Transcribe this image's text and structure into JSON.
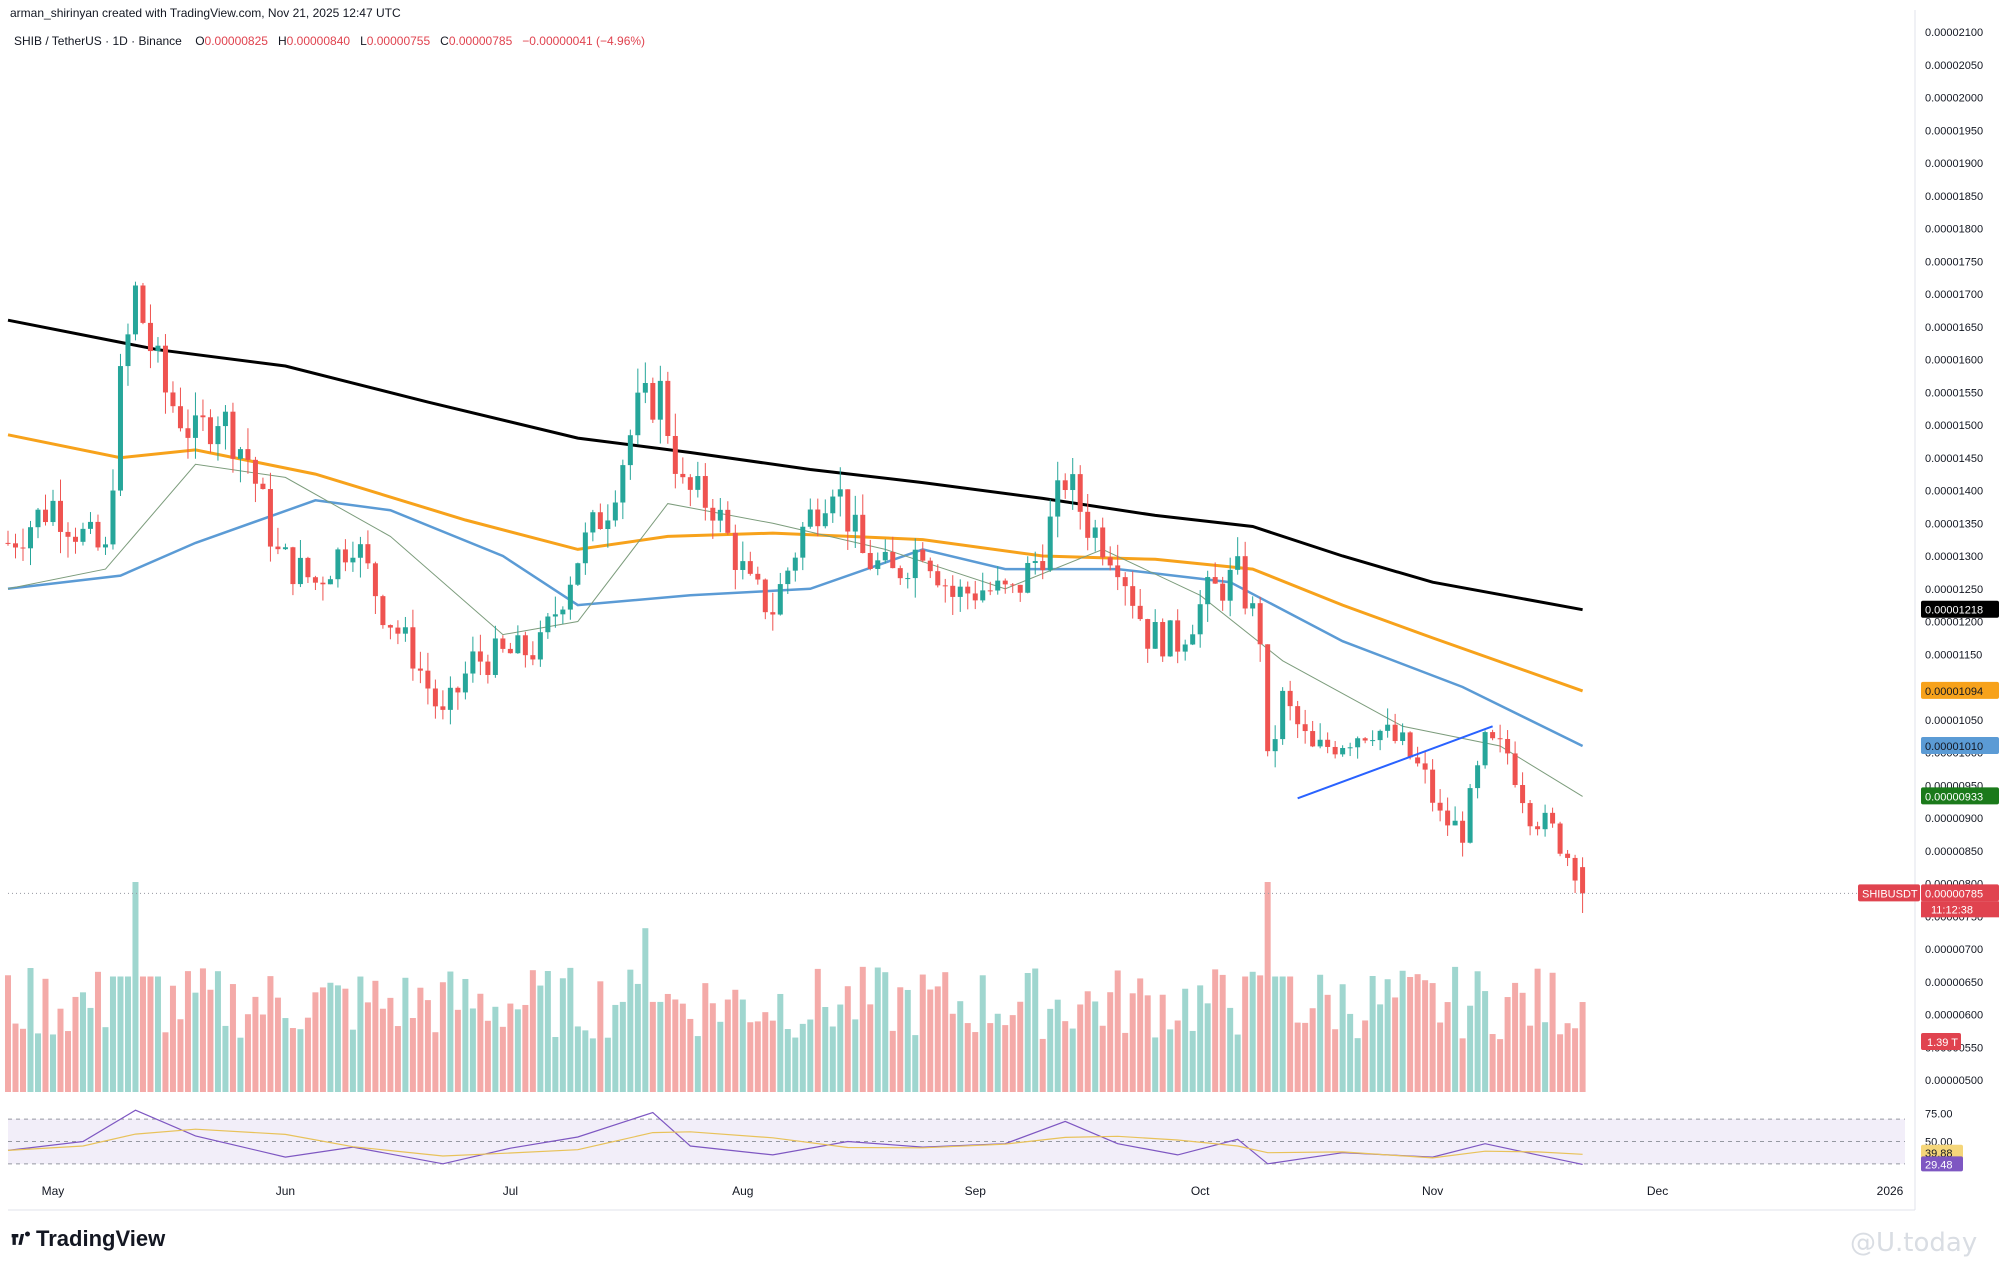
{
  "header": {
    "credit": "arman_shirinyan created with TradingView.com, Nov 21, 2025 12:47 UTC",
    "symbol": "SHIB / TetherUS · 1D · Binance",
    "open_label": "O",
    "open": "0.00000825",
    "high_label": "H",
    "high": "0.00000840",
    "low_label": "L",
    "low": "0.00000755",
    "close_label": "C",
    "close": "0.00000785",
    "change": "−0.00000041 (−4.96%)"
  },
  "footer": {
    "brand": "TradingView",
    "watermark": "@U.today"
  },
  "colors": {
    "up": "#26a69a",
    "down": "#ef5350",
    "ma200": "#000000",
    "ma100": "#f7a21b",
    "ma50": "#5b9bd5",
    "ma20": "#7c9c7c",
    "rsi": "#7e57c2",
    "rsi_ma": "#e8c25a",
    "trendline": "#2962ff",
    "last_price": "#e0434f"
  },
  "chart_data": [
    {
      "type": "candlestick",
      "title": "SHIB / TetherUS · 1D · Binance",
      "x_ticks": [
        "May",
        "Jun",
        "Jul",
        "Aug",
        "Sep",
        "Oct",
        "Nov",
        "Dec",
        "2026"
      ],
      "x_tick_dates": [
        "2025-05-01",
        "2025-06-01",
        "2025-07-01",
        "2025-08-01",
        "2025-09-01",
        "2025-10-01",
        "2025-11-01",
        "2025-12-01",
        "2026-01-01"
      ],
      "y_ticks": [
        "0.00002100",
        "0.00002050",
        "0.00002000",
        "0.00001950",
        "0.00001900",
        "0.00001850",
        "0.00001800",
        "0.00001750",
        "0.00001700",
        "0.00001650",
        "0.00001600",
        "0.00001550",
        "0.00001500",
        "0.00001450",
        "0.00001400",
        "0.00001350",
        "0.00001300",
        "0.00001250",
        "0.00001200",
        "0.00001150",
        "0.00001100",
        "0.00001050",
        "0.00001000",
        "0.00000950",
        "0.00000900",
        "0.00000850",
        "0.00000800",
        "0.00000750",
        "0.00000700",
        "0.00000650",
        "0.00000600",
        "0.00000550",
        "0.00000500"
      ],
      "ylim": [
        5e-06,
        2.1e-05
      ],
      "series": [
        {
          "name": "Close",
          "points": [
            {
              "date": "2025-04-25",
              "close": 1.32e-05
            },
            {
              "date": "2025-05-01",
              "close": 1.38e-05
            },
            {
              "date": "2025-05-05",
              "close": 1.33e-05
            },
            {
              "date": "2025-05-08",
              "close": 1.3e-05
            },
            {
              "date": "2025-05-10",
              "close": 1.56e-05
            },
            {
              "date": "2025-05-12",
              "close": 1.7e-05
            },
            {
              "date": "2025-05-14",
              "close": 1.62e-05
            },
            {
              "date": "2025-05-16",
              "close": 1.55e-05
            },
            {
              "date": "2025-05-20",
              "close": 1.48e-05
            },
            {
              "date": "2025-05-23",
              "close": 1.52e-05
            },
            {
              "date": "2025-05-27",
              "close": 1.45e-05
            },
            {
              "date": "2025-05-31",
              "close": 1.3e-05
            },
            {
              "date": "2025-06-05",
              "close": 1.26e-05
            },
            {
              "date": "2025-06-10",
              "close": 1.33e-05
            },
            {
              "date": "2025-06-14",
              "close": 1.22e-05
            },
            {
              "date": "2025-06-18",
              "close": 1.15e-05
            },
            {
              "date": "2025-06-22",
              "close": 1.05e-05
            },
            {
              "date": "2025-06-26",
              "close": 1.14e-05
            },
            {
              "date": "2025-07-01",
              "close": 1.15e-05
            },
            {
              "date": "2025-07-05",
              "close": 1.16e-05
            },
            {
              "date": "2025-07-10",
              "close": 1.3e-05
            },
            {
              "date": "2025-07-14",
              "close": 1.38e-05
            },
            {
              "date": "2025-07-18",
              "close": 1.52e-05
            },
            {
              "date": "2025-07-21",
              "close": 1.55e-05
            },
            {
              "date": "2025-07-24",
              "close": 1.4e-05
            },
            {
              "date": "2025-07-28",
              "close": 1.38e-05
            },
            {
              "date": "2025-08-02",
              "close": 1.25e-05
            },
            {
              "date": "2025-08-05",
              "close": 1.22e-05
            },
            {
              "date": "2025-08-09",
              "close": 1.34e-05
            },
            {
              "date": "2025-08-13",
              "close": 1.42e-05
            },
            {
              "date": "2025-08-17",
              "close": 1.3e-05
            },
            {
              "date": "2025-08-21",
              "close": 1.27e-05
            },
            {
              "date": "2025-08-25",
              "close": 1.32e-05
            },
            {
              "date": "2025-08-29",
              "close": 1.24e-05
            },
            {
              "date": "2025-09-02",
              "close": 1.25e-05
            },
            {
              "date": "2025-09-06",
              "close": 1.24e-05
            },
            {
              "date": "2025-09-10",
              "close": 1.31e-05
            },
            {
              "date": "2025-09-13",
              "close": 1.42e-05
            },
            {
              "date": "2025-09-16",
              "close": 1.35e-05
            },
            {
              "date": "2025-09-20",
              "close": 1.3e-05
            },
            {
              "date": "2025-09-24",
              "close": 1.18e-05
            },
            {
              "date": "2025-09-28",
              "close": 1.17e-05
            },
            {
              "date": "2025-10-02",
              "close": 1.24e-05
            },
            {
              "date": "2025-10-06",
              "close": 1.27e-05
            },
            {
              "date": "2025-10-09",
              "close": 1.18e-05
            },
            {
              "date": "2025-10-10",
              "close": 9.8e-06
            },
            {
              "date": "2025-10-12",
              "close": 1.08e-05
            },
            {
              "date": "2025-10-16",
              "close": 1e-05
            },
            {
              "date": "2025-10-20",
              "close": 1.02e-05
            },
            {
              "date": "2025-10-24",
              "close": 1.04e-05
            },
            {
              "date": "2025-10-28",
              "close": 1.01e-05
            },
            {
              "date": "2025-10-31",
              "close": 9.6e-06
            },
            {
              "date": "2025-11-02",
              "close": 9e-06
            },
            {
              "date": "2025-11-05",
              "close": 8.8e-06
            },
            {
              "date": "2025-11-08",
              "close": 1.01e-05
            },
            {
              "date": "2025-11-11",
              "close": 1e-05
            },
            {
              "date": "2025-11-14",
              "close": 9.1e-06
            },
            {
              "date": "2025-11-17",
              "close": 8.8e-06
            },
            {
              "date": "2025-11-20",
              "close": 8.25e-06
            },
            {
              "date": "2025-11-21",
              "close": 7.85e-06
            }
          ]
        },
        {
          "name": "MA 200",
          "points": [
            {
              "date": "2025-04-25",
              "value": 1.66e-05
            },
            {
              "date": "2025-05-15",
              "value": 1.615e-05
            },
            {
              "date": "2025-06-01",
              "value": 1.59e-05
            },
            {
              "date": "2025-06-20",
              "value": 1.535e-05
            },
            {
              "date": "2025-07-10",
              "value": 1.48e-05
            },
            {
              "date": "2025-07-25",
              "value": 1.458e-05
            },
            {
              "date": "2025-08-10",
              "value": 1.432e-05
            },
            {
              "date": "2025-08-25",
              "value": 1.412e-05
            },
            {
              "date": "2025-09-10",
              "value": 1.388e-05
            },
            {
              "date": "2025-09-25",
              "value": 1.362e-05
            },
            {
              "date": "2025-10-08",
              "value": 1.345e-05
            },
            {
              "date": "2025-10-20",
              "value": 1.3e-05
            },
            {
              "date": "2025-11-01",
              "value": 1.26e-05
            },
            {
              "date": "2025-11-21",
              "value": 1.218e-05
            }
          ]
        },
        {
          "name": "MA 100",
          "points": [
            {
              "date": "2025-04-25",
              "value": 1.485e-05
            },
            {
              "date": "2025-05-10",
              "value": 1.45e-05
            },
            {
              "date": "2025-05-20",
              "value": 1.462e-05
            },
            {
              "date": "2025-06-05",
              "value": 1.425e-05
            },
            {
              "date": "2025-06-25",
              "value": 1.355e-05
            },
            {
              "date": "2025-07-10",
              "value": 1.31e-05
            },
            {
              "date": "2025-07-22",
              "value": 1.33e-05
            },
            {
              "date": "2025-08-05",
              "value": 1.335e-05
            },
            {
              "date": "2025-08-25",
              "value": 1.325e-05
            },
            {
              "date": "2025-09-10",
              "value": 1.3e-05
            },
            {
              "date": "2025-09-25",
              "value": 1.295e-05
            },
            {
              "date": "2025-10-08",
              "value": 1.28e-05
            },
            {
              "date": "2025-10-20",
              "value": 1.225e-05
            },
            {
              "date": "2025-11-01",
              "value": 1.175e-05
            },
            {
              "date": "2025-11-21",
              "value": 1.094e-05
            }
          ]
        },
        {
          "name": "MA 50",
          "points": [
            {
              "date": "2025-04-25",
              "value": 1.25e-05
            },
            {
              "date": "2025-05-10",
              "value": 1.27e-05
            },
            {
              "date": "2025-05-20",
              "value": 1.32e-05
            },
            {
              "date": "2025-06-05",
              "value": 1.385e-05
            },
            {
              "date": "2025-06-15",
              "value": 1.37e-05
            },
            {
              "date": "2025-06-30",
              "value": 1.3e-05
            },
            {
              "date": "2025-07-10",
              "value": 1.225e-05
            },
            {
              "date": "2025-07-25",
              "value": 1.24e-05
            },
            {
              "date": "2025-08-10",
              "value": 1.25e-05
            },
            {
              "date": "2025-08-25",
              "value": 1.31e-05
            },
            {
              "date": "2025-09-05",
              "value": 1.28e-05
            },
            {
              "date": "2025-09-20",
              "value": 1.28e-05
            },
            {
              "date": "2025-10-05",
              "value": 1.26e-05
            },
            {
              "date": "2025-10-20",
              "value": 1.17e-05
            },
            {
              "date": "2025-11-05",
              "value": 1.1e-05
            },
            {
              "date": "2025-11-21",
              "value": 1.01e-05
            }
          ]
        },
        {
          "name": "MA 20",
          "points": [
            {
              "date": "2025-04-25",
              "value": 1.25e-05
            },
            {
              "date": "2025-05-08",
              "value": 1.28e-05
            },
            {
              "date": "2025-05-20",
              "value": 1.44e-05
            },
            {
              "date": "2025-06-01",
              "value": 1.42e-05
            },
            {
              "date": "2025-06-15",
              "value": 1.33e-05
            },
            {
              "date": "2025-06-30",
              "value": 1.18e-05
            },
            {
              "date": "2025-07-10",
              "value": 1.2e-05
            },
            {
              "date": "2025-07-22",
              "value": 1.38e-05
            },
            {
              "date": "2025-08-05",
              "value": 1.35e-05
            },
            {
              "date": "2025-08-20",
              "value": 1.31e-05
            },
            {
              "date": "2025-09-05",
              "value": 1.25e-05
            },
            {
              "date": "2025-09-18",
              "value": 1.31e-05
            },
            {
              "date": "2025-10-01",
              "value": 1.24e-05
            },
            {
              "date": "2025-10-12",
              "value": 1.14e-05
            },
            {
              "date": "2025-10-28",
              "value": 1.04e-05
            },
            {
              "date": "2025-11-10",
              "value": 1.01e-05
            },
            {
              "date": "2025-11-21",
              "value": 9.33e-06
            }
          ]
        }
      ],
      "trendline": [
        {
          "date": "2025-10-14",
          "value": 9.3e-06
        },
        {
          "date": "2025-11-09",
          "value": 1.04e-05
        }
      ],
      "price_labels": [
        {
          "series": "MA 200",
          "text": "0.00001218",
          "value": 1.218e-05
        },
        {
          "series": "MA 100",
          "text": "0.00001094",
          "value": 1.094e-05
        },
        {
          "series": "MA 50",
          "text": "0.00001010",
          "value": 1.01e-05
        },
        {
          "series": "MA 20",
          "text": "0.00000933",
          "value": 9.33e-06
        },
        {
          "series": "Close",
          "text": "0.00000785",
          "value": 7.85e-06
        }
      ],
      "last_price": {
        "symbol": "SHIBUSDT",
        "value_text": "0.00000785",
        "countdown": "11:12:38"
      },
      "volume_label": "1.39 T",
      "volume_peaks": [
        {
          "date": "2025-05-12",
          "relative": 1.0
        },
        {
          "date": "2025-07-19",
          "relative": 0.78
        },
        {
          "date": "2025-10-10",
          "relative": 1.0
        }
      ]
    },
    {
      "type": "line",
      "title": "",
      "y_ticks": [
        "75.00",
        "50.00"
      ],
      "ylim": [
        20,
        80
      ],
      "band": [
        30,
        70
      ],
      "series": [
        {
          "name": "",
          "points": [
            {
              "date": "2025-04-25",
              "value": 42
            },
            {
              "date": "2025-05-05",
              "value": 50
            },
            {
              "date": "2025-05-12",
              "value": 78
            },
            {
              "date": "2025-05-20",
              "value": 55
            },
            {
              "date": "2025-06-01",
              "value": 36
            },
            {
              "date": "2025-06-10",
              "value": 45
            },
            {
              "date": "2025-06-22",
              "value": 30
            },
            {
              "date": "2025-07-01",
              "value": 44
            },
            {
              "date": "2025-07-10",
              "value": 54
            },
            {
              "date": "2025-07-20",
              "value": 76
            },
            {
              "date": "2025-07-25",
              "value": 46
            },
            {
              "date": "2025-08-05",
              "value": 38
            },
            {
              "date": "2025-08-15",
              "value": 50
            },
            {
              "date": "2025-08-25",
              "value": 45
            },
            {
              "date": "2025-09-05",
              "value": 48
            },
            {
              "date": "2025-09-13",
              "value": 68
            },
            {
              "date": "2025-09-20",
              "value": 48
            },
            {
              "date": "2025-09-28",
              "value": 38
            },
            {
              "date": "2025-10-06",
              "value": 52
            },
            {
              "date": "2025-10-10",
              "value": 30
            },
            {
              "date": "2025-10-20",
              "value": 40
            },
            {
              "date": "2025-11-01",
              "value": 36
            },
            {
              "date": "2025-11-08",
              "value": 48
            },
            {
              "date": "2025-11-15",
              "value": 38
            },
            {
              "date": "2025-11-21",
              "value": 29.48
            }
          ]
        }
      ],
      "labels": [
        {
          "text": "39.88",
          "value": 39.88
        },
        {
          "text": "29.48",
          "value": 29.48
        }
      ]
    }
  ]
}
